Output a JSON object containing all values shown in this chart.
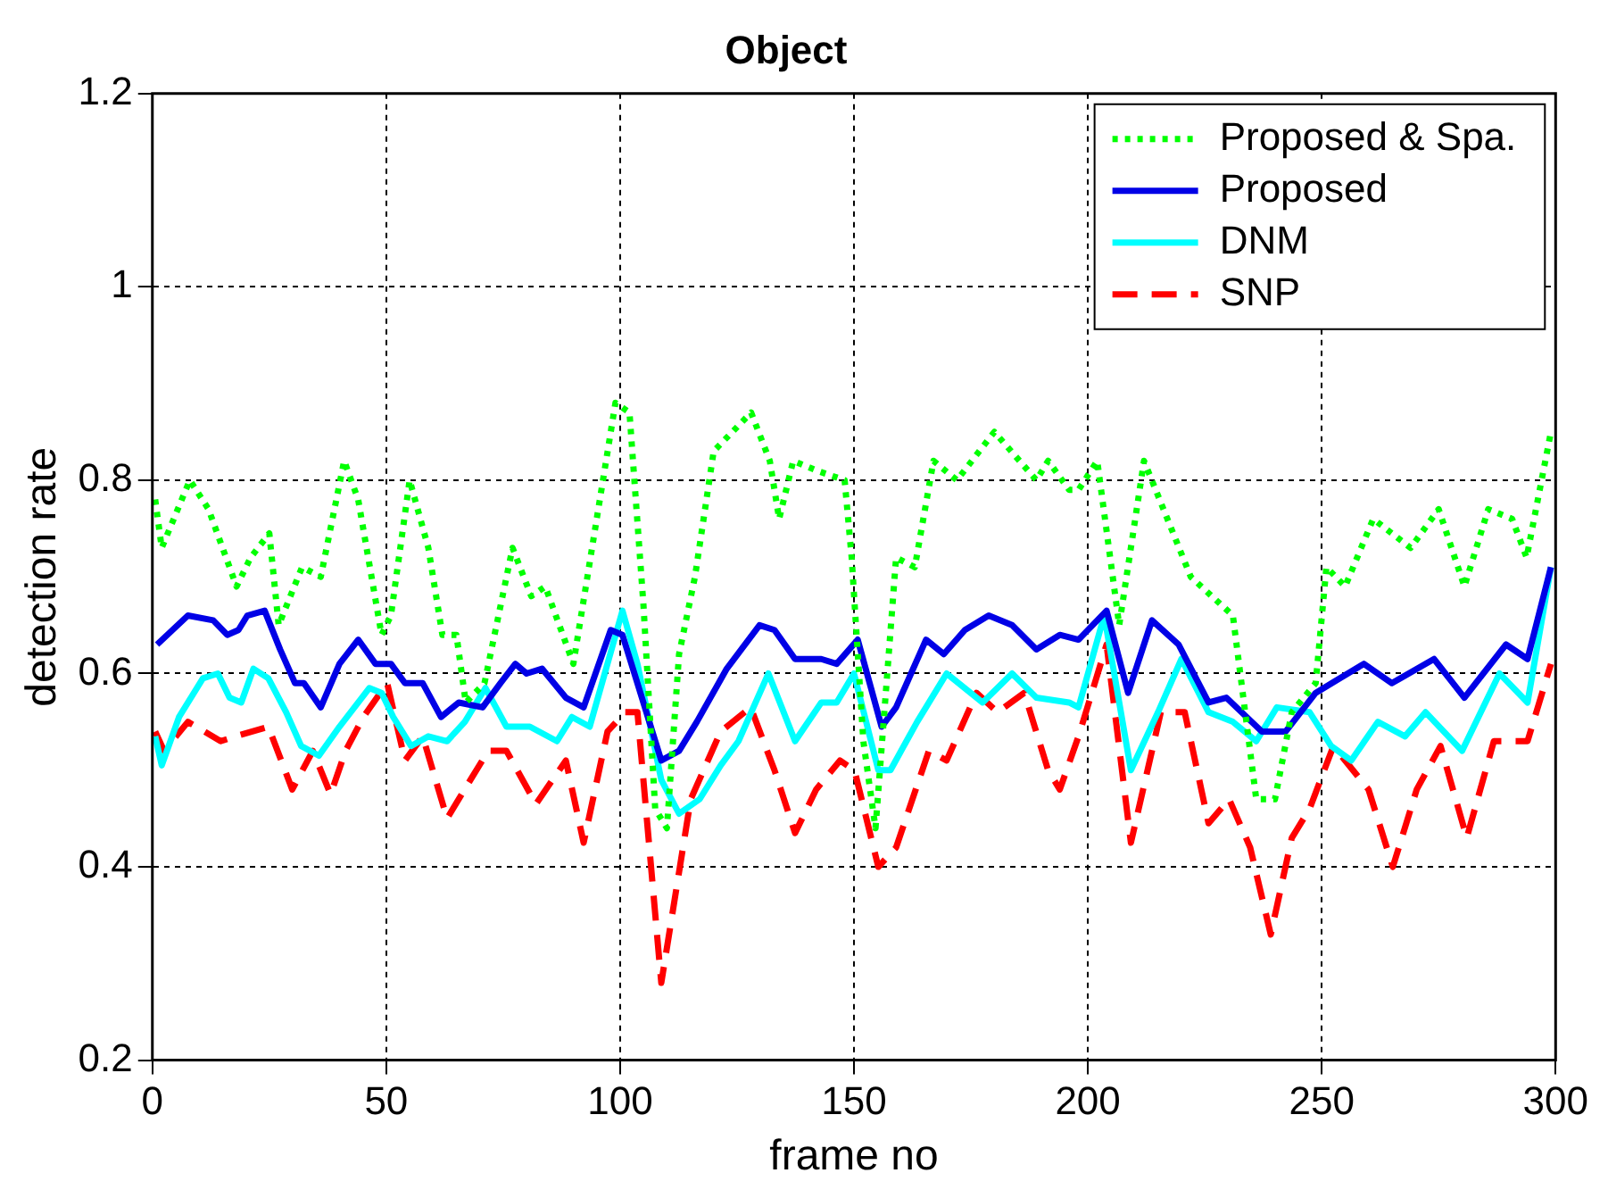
{
  "chart_data": {
    "type": "line",
    "title": "Object",
    "xlabel": "frame no",
    "ylabel": "detection rate",
    "xlim": [
      0,
      300
    ],
    "xticks": [
      0,
      50,
      100,
      150,
      200,
      250,
      300
    ],
    "ylim": [
      0.2,
      1.2
    ],
    "yticks": [
      0.2,
      0.4,
      0.6,
      0.8,
      1,
      1.2
    ],
    "grid": true,
    "legend": "top right",
    "marker": "none",
    "series": [
      {
        "name": "Proposed & Spa.",
        "color": "#00ff00",
        "line_style": "dotted",
        "x": [
          0.6,
          2,
          8,
          12,
          18,
          21,
          25,
          27,
          32,
          36,
          41,
          44,
          49,
          51,
          55,
          59,
          62,
          65,
          67,
          71,
          77,
          81,
          84,
          90,
          99,
          102,
          105,
          107.5,
          110,
          112.6,
          116,
          120,
          128,
          132,
          134,
          137,
          142,
          148,
          149.5,
          152,
          154.6,
          159,
          163,
          167,
          172,
          180,
          189,
          191.5,
          196,
          198,
          202,
          206.7,
          212,
          222,
          231,
          236,
          240,
          243.6,
          248.7,
          251,
          255,
          261,
          269,
          275,
          280.5,
          285.6,
          290.7,
          293.8,
          299
        ],
        "values": [
          0.78,
          0.73,
          0.8,
          0.77,
          0.69,
          0.72,
          0.745,
          0.65,
          0.71,
          0.7,
          0.82,
          0.78,
          0.64,
          0.66,
          0.8,
          0.73,
          0.64,
          0.64,
          0.57,
          0.59,
          0.73,
          0.68,
          0.69,
          0.61,
          0.88,
          0.87,
          0.67,
          0.46,
          0.44,
          0.62,
          0.7,
          0.83,
          0.87,
          0.82,
          0.76,
          0.82,
          0.81,
          0.8,
          0.72,
          0.53,
          0.44,
          0.72,
          0.71,
          0.82,
          0.8,
          0.85,
          0.8,
          0.82,
          0.79,
          0.79,
          0.82,
          0.65,
          0.82,
          0.7,
          0.66,
          0.47,
          0.47,
          0.56,
          0.59,
          0.71,
          0.69,
          0.76,
          0.73,
          0.77,
          0.69,
          0.77,
          0.76,
          0.72,
          0.85
        ]
      },
      {
        "name": "Proposed",
        "color": "#0000e6",
        "line_style": "solid",
        "x": [
          1,
          7.6,
          13,
          16,
          18.4,
          20.3,
          24,
          27.3,
          30.5,
          32.4,
          36,
          40,
          44,
          47.7,
          51,
          54,
          57.8,
          61.7,
          65.5,
          70.6,
          74.4,
          77.6,
          80,
          83.3,
          88.4,
          92.2,
          98,
          100.5,
          108.8,
          112.6,
          116.4,
          122.8,
          129.8,
          133,
          137.4,
          143,
          146.3,
          150.8,
          155.9,
          159,
          165.4,
          169.2,
          173.7,
          178.8,
          183.8,
          189,
          194,
          198,
          204,
          208.6,
          213.7,
          219.4,
          225.8,
          229.6,
          237.2,
          242.3,
          248.7,
          259,
          265,
          274,
          280.5,
          289.4,
          294,
          299
        ],
        "values": [
          0.63,
          0.66,
          0.655,
          0.64,
          0.645,
          0.66,
          0.665,
          0.625,
          0.59,
          0.59,
          0.565,
          0.61,
          0.635,
          0.61,
          0.61,
          0.59,
          0.59,
          0.555,
          0.57,
          0.565,
          0.59,
          0.61,
          0.6,
          0.605,
          0.575,
          0.565,
          0.645,
          0.64,
          0.51,
          0.52,
          0.55,
          0.605,
          0.65,
          0.645,
          0.615,
          0.615,
          0.61,
          0.635,
          0.545,
          0.565,
          0.635,
          0.62,
          0.645,
          0.66,
          0.65,
          0.625,
          0.64,
          0.635,
          0.665,
          0.58,
          0.655,
          0.63,
          0.57,
          0.575,
          0.54,
          0.54,
          0.58,
          0.61,
          0.59,
          0.615,
          0.575,
          0.63,
          0.615,
          0.71
        ]
      },
      {
        "name": "DNM",
        "color": "#00ffff",
        "line_style": "solid",
        "x": [
          0.6,
          2,
          5.7,
          10.8,
          14,
          16.5,
          19,
          21.6,
          24.8,
          28.6,
          31.8,
          35.6,
          40,
          46.4,
          49,
          51.5,
          55.3,
          59,
          63,
          66.8,
          71.2,
          75.7,
          80.7,
          86.5,
          89.7,
          93.5,
          100.5,
          103.7,
          108.8,
          112.6,
          117,
          121.5,
          125.3,
          131.7,
          137.4,
          143,
          146.3,
          150,
          155.2,
          157.8,
          163.5,
          169.8,
          177.5,
          183.8,
          189,
          196,
          198,
          203.5,
          209.2,
          215,
          220,
          225.8,
          231,
          236,
          240.4,
          247.4,
          252,
          256.3,
          262,
          267.8,
          272.2,
          280,
          288,
          294,
          299
        ],
        "values": [
          0.535,
          0.505,
          0.555,
          0.595,
          0.6,
          0.575,
          0.57,
          0.605,
          0.595,
          0.56,
          0.525,
          0.515,
          0.545,
          0.585,
          0.58,
          0.555,
          0.525,
          0.535,
          0.53,
          0.55,
          0.585,
          0.545,
          0.545,
          0.53,
          0.555,
          0.545,
          0.665,
          0.61,
          0.49,
          0.455,
          0.47,
          0.505,
          0.53,
          0.6,
          0.53,
          0.57,
          0.57,
          0.6,
          0.5,
          0.5,
          0.55,
          0.6,
          0.57,
          0.6,
          0.575,
          0.57,
          0.565,
          0.66,
          0.5,
          0.56,
          0.615,
          0.56,
          0.55,
          0.53,
          0.565,
          0.56,
          0.525,
          0.51,
          0.55,
          0.535,
          0.56,
          0.52,
          0.6,
          0.57,
          0.71
        ]
      },
      {
        "name": "SNP",
        "color": "#ff0000",
        "line_style": "dashed",
        "x": [
          0.6,
          2.5,
          7.6,
          14.6,
          17.8,
          24.8,
          29.9,
          34.3,
          38.1,
          41.3,
          45.1,
          50.2,
          54,
          57.8,
          63,
          68,
          71.8,
          75.7,
          82,
          88.4,
          92.2,
          97.3,
          101.1,
          103.7,
          108.8,
          115.1,
          121.5,
          127.9,
          133,
          137.4,
          141.9,
          147,
          150.1,
          155.2,
          159,
          166,
          169.8,
          176.2,
          180.7,
          186.4,
          191.5,
          194,
          198,
          204,
          209.2,
          215.6,
          220.7,
          225.8,
          230.2,
          234.7,
          239.1,
          243.6,
          247.4,
          252.5,
          260,
          265.2,
          270.3,
          275.4,
          281,
          286.8,
          294,
          299
        ],
        "values": [
          0.54,
          0.52,
          0.55,
          0.53,
          0.535,
          0.545,
          0.48,
          0.52,
          0.475,
          0.52,
          0.555,
          0.59,
          0.51,
          0.535,
          0.45,
          0.49,
          0.52,
          0.52,
          0.465,
          0.51,
          0.425,
          0.54,
          0.56,
          0.56,
          0.28,
          0.47,
          0.54,
          0.565,
          0.5,
          0.435,
          0.48,
          0.51,
          0.5,
          0.4,
          0.42,
          0.52,
          0.51,
          0.58,
          0.56,
          0.58,
          0.5,
          0.48,
          0.535,
          0.63,
          0.425,
          0.56,
          0.56,
          0.445,
          0.47,
          0.42,
          0.33,
          0.43,
          0.46,
          0.525,
          0.48,
          0.4,
          0.48,
          0.525,
          0.43,
          0.53,
          0.53,
          0.61
        ]
      }
    ]
  }
}
